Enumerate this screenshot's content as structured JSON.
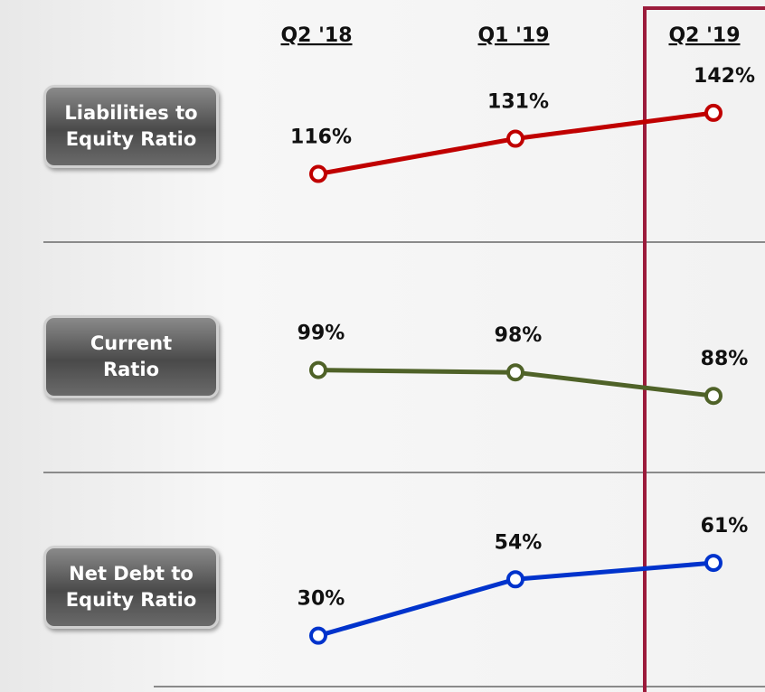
{
  "chart_data": {
    "type": "line",
    "categories": [
      "Q2 '18",
      "Q1 '19",
      "Q2 '19"
    ],
    "series": [
      {
        "name": "Liabilities to Equity Ratio",
        "color": "#c00000",
        "values": [
          116,
          131,
          142
        ],
        "value_labels": [
          "116%",
          "131%",
          "142%"
        ]
      },
      {
        "name": "Current Ratio",
        "color": "#4f6228",
        "values": [
          99,
          98,
          88
        ],
        "value_labels": [
          "99%",
          "98%",
          "88%"
        ]
      },
      {
        "name": "Net Debt to Equity Ratio",
        "color": "#0033cc",
        "values": [
          30,
          54,
          61
        ],
        "value_labels": [
          "30%",
          "54%",
          "61%"
        ]
      }
    ]
  }
}
